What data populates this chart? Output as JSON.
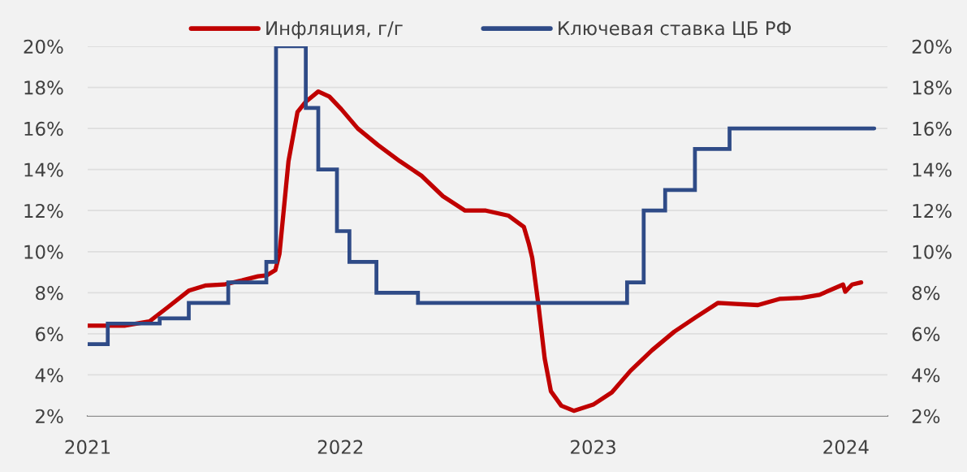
{
  "chart_data": {
    "type": "line",
    "xlim": [
      "2021-01-01",
      "2024-03-01"
    ],
    "xticks": [
      "2021",
      "2022",
      "2023",
      "2024"
    ],
    "ylim": [
      2,
      20
    ],
    "yticks": [
      {
        "value": 2,
        "label": "2%"
      },
      {
        "value": 4,
        "label": "4%"
      },
      {
        "value": 6,
        "label": "6%"
      },
      {
        "value": 8,
        "label": "8%"
      },
      {
        "value": 10,
        "label": "10%"
      },
      {
        "value": 12,
        "label": "12%"
      },
      {
        "value": 14,
        "label": "14%"
      },
      {
        "value": 16,
        "label": "16%"
      },
      {
        "value": 18,
        "label": "18%"
      },
      {
        "value": 20,
        "label": "20%"
      }
    ],
    "y2lim": [
      2,
      20
    ],
    "y2ticks": [
      {
        "value": 2,
        "label": "2%"
      },
      {
        "value": 4,
        "label": "4%"
      },
      {
        "value": 6,
        "label": "6%"
      },
      {
        "value": 8,
        "label": "8%"
      },
      {
        "value": 10,
        "label": "10%"
      },
      {
        "value": 12,
        "label": "12%"
      },
      {
        "value": 14,
        "label": "14%"
      },
      {
        "value": 16,
        "label": "16%"
      },
      {
        "value": 18,
        "label": "18%"
      },
      {
        "value": 20,
        "label": "20%"
      }
    ],
    "grid": "y",
    "legend": "top",
    "series": [
      {
        "name": "Инфляция, г/г",
        "color": "#c00000",
        "x": [
          "2021-01-01",
          "2021-02-23",
          "2021-03-31",
          "2021-04-27",
          "2021-05-27",
          "2021-06-20",
          "2021-07-17",
          "2021-08-12",
          "2021-09-04",
          "2021-09-17",
          "2021-09-29",
          "2021-10-05",
          "2021-10-18",
          "2021-10-31",
          "2021-11-12",
          "2021-11-30",
          "2021-12-16",
          "2022-01-02",
          "2022-01-26",
          "2022-02-24",
          "2022-03-28",
          "2022-04-28",
          "2022-05-29",
          "2022-06-30",
          "2022-07-30",
          "2022-09-01",
          "2022-09-23",
          "2022-09-30",
          "2022-10-05",
          "2022-10-14",
          "2022-10-23",
          "2022-11-01",
          "2022-11-16",
          "2022-12-04",
          "2023-01-01",
          "2023-01-28",
          "2023-02-24",
          "2023-03-27",
          "2023-04-28",
          "2023-05-29",
          "2023-06-30",
          "2023-07-26",
          "2023-08-27",
          "2023-09-27",
          "2023-10-29",
          "2023-11-24",
          "2023-12-28",
          "2023-12-31",
          "2024-01-10",
          "2024-01-23"
        ],
        "values": [
          6.4,
          6.4,
          6.6,
          7.3,
          8.1,
          8.35,
          8.4,
          8.6,
          8.8,
          8.85,
          9.1,
          9.9,
          14.4,
          16.8,
          17.3,
          17.8,
          17.55,
          16.95,
          16.0,
          15.2,
          14.4,
          13.7,
          12.7,
          12.0,
          12.0,
          11.75,
          11.2,
          10.4,
          9.7,
          7.4,
          4.8,
          3.2,
          2.5,
          2.25,
          2.55,
          3.15,
          4.2,
          5.2,
          6.1,
          6.8,
          7.5,
          7.45,
          7.4,
          7.7,
          7.75,
          7.9,
          8.4,
          8.05,
          8.4,
          8.5
        ]
      },
      {
        "name": "Ключевая ставка ЦБ РФ",
        "type": "step",
        "color": "#2f4b87",
        "x": [
          "2021-01-01",
          "2021-01-30",
          "2021-04-15",
          "2021-05-27",
          "2021-07-23",
          "2021-09-16",
          "2021-09-30",
          "2021-11-12",
          "2021-11-30",
          "2021-12-27",
          "2022-01-14",
          "2022-02-22",
          "2022-04-23",
          "2023-02-19",
          "2023-03-15",
          "2023-04-15",
          "2023-05-28",
          "2023-07-17",
          "2024-02-11"
        ],
        "values": [
          5.5,
          6.5,
          6.75,
          7.5,
          8.5,
          9.5,
          20,
          17,
          14,
          11,
          9.5,
          8,
          7.5,
          8.5,
          12,
          13,
          15,
          16,
          16
        ]
      }
    ]
  }
}
